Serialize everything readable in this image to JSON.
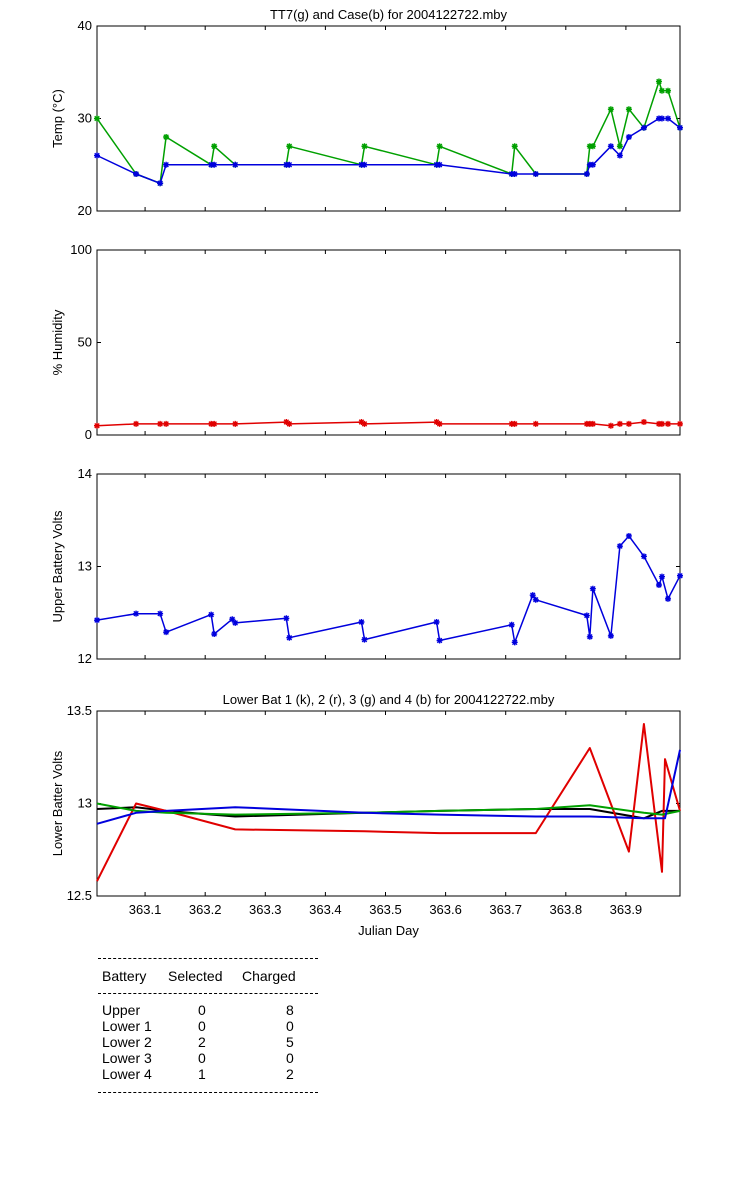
{
  "charts": [
    {
      "title": "TT7(g) and Case(b) for 2004122722.mby",
      "ylabel": "Temp  (°C)",
      "ylim": [
        20,
        40
      ],
      "yticks": [
        "20",
        "30",
        "40"
      ],
      "ytick_values": [
        20,
        30,
        40
      ]
    },
    {
      "title": "",
      "ylabel": "% Humidity",
      "ylim": [
        0,
        100
      ],
      "yticks": [
        "0",
        "50",
        "100"
      ],
      "ytick_values": [
        0,
        50,
        100
      ]
    },
    {
      "title": "",
      "ylabel": "Upper Battery Volts",
      "ylim": [
        12,
        14
      ],
      "yticks": [
        "12",
        "13",
        "14"
      ],
      "ytick_values": [
        12,
        13,
        14
      ]
    },
    {
      "title": "Lower Bat 1 (k), 2 (r), 3 (g) and 4 (b) for 2004122722.mby",
      "ylabel": "Lower Batter Volts",
      "ylim": [
        12.5,
        13.5
      ],
      "yticks": [
        "12.5",
        "13",
        "13.5"
      ],
      "ytick_values": [
        12.5,
        13,
        13.5
      ]
    }
  ],
  "xaxis": {
    "label": "Julian Day",
    "xlim": [
      363.02,
      363.99
    ],
    "ticks": [
      "363.1",
      "363.2",
      "363.3",
      "363.4",
      "363.5",
      "363.6",
      "363.7",
      "363.8",
      "363.9"
    ],
    "tick_values": [
      363.1,
      363.2,
      363.3,
      363.4,
      363.5,
      363.6,
      363.7,
      363.8,
      363.9
    ]
  },
  "chart_data": [
    {
      "type": "line",
      "title": "TT7(g) and Case(b) for 2004122722.mby",
      "ylabel": "Temp  (°C)",
      "ylim": [
        20,
        40
      ],
      "xlim": [
        363.02,
        363.99
      ],
      "series": [
        {
          "color": "#00a000",
          "marker": true,
          "x": [
            363.02,
            363.085,
            363.125,
            363.135,
            363.21,
            363.215,
            363.25,
            363.335,
            363.34,
            363.46,
            363.465,
            363.585,
            363.59,
            363.71,
            363.715,
            363.75,
            363.835,
            363.84,
            363.845,
            363.875,
            363.89,
            363.905,
            363.93,
            363.955,
            363.96,
            363.97,
            363.99
          ],
          "y": [
            30,
            24,
            23,
            28,
            25,
            27,
            25,
            25,
            27,
            25,
            27,
            25,
            27,
            24,
            27,
            24,
            24,
            27,
            27,
            31,
            27,
            31,
            29,
            34,
            33,
            33,
            29
          ]
        },
        {
          "color": "#0000dd",
          "marker": true,
          "x": [
            363.02,
            363.085,
            363.125,
            363.135,
            363.21,
            363.215,
            363.25,
            363.335,
            363.34,
            363.46,
            363.465,
            363.585,
            363.59,
            363.71,
            363.715,
            363.75,
            363.835,
            363.84,
            363.845,
            363.875,
            363.89,
            363.905,
            363.93,
            363.955,
            363.96,
            363.97,
            363.99
          ],
          "y": [
            26,
            24,
            23,
            25,
            25,
            25,
            25,
            25,
            25,
            25,
            25,
            25,
            25,
            24,
            24,
            24,
            24,
            25,
            25,
            27,
            26,
            28,
            29,
            30,
            30,
            30,
            29
          ]
        }
      ]
    },
    {
      "type": "line",
      "ylabel": "% Humidity",
      "ylim": [
        0,
        100
      ],
      "xlim": [
        363.02,
        363.99
      ],
      "series": [
        {
          "color": "#e00000",
          "marker": true,
          "x": [
            363.02,
            363.085,
            363.125,
            363.135,
            363.21,
            363.215,
            363.25,
            363.335,
            363.34,
            363.46,
            363.465,
            363.585,
            363.59,
            363.71,
            363.715,
            363.75,
            363.835,
            363.84,
            363.845,
            363.875,
            363.89,
            363.905,
            363.93,
            363.955,
            363.96,
            363.97,
            363.99
          ],
          "y": [
            5,
            6,
            6,
            6,
            6,
            6,
            6,
            7,
            6,
            7,
            6,
            7,
            6,
            6,
            6,
            6,
            6,
            6,
            6,
            5,
            6,
            6,
            7,
            6,
            6,
            6,
            6
          ]
        }
      ]
    },
    {
      "type": "line",
      "ylabel": "Upper Battery Volts",
      "ylim": [
        12,
        14
      ],
      "xlim": [
        363.02,
        363.99
      ],
      "series": [
        {
          "color": "#0000dd",
          "marker": true,
          "x": [
            363.02,
            363.085,
            363.125,
            363.135,
            363.21,
            363.215,
            363.245,
            363.25,
            363.335,
            363.34,
            363.46,
            363.465,
            363.585,
            363.59,
            363.71,
            363.715,
            363.745,
            363.75,
            363.835,
            363.84,
            363.845,
            363.875,
            363.89,
            363.905,
            363.93,
            363.955,
            363.96,
            363.97,
            363.99
          ],
          "y": [
            12.42,
            12.49,
            12.49,
            12.29,
            12.48,
            12.27,
            12.43,
            12.39,
            12.44,
            12.23,
            12.4,
            12.21,
            12.4,
            12.2,
            12.37,
            12.18,
            12.69,
            12.64,
            12.47,
            12.24,
            12.76,
            12.25,
            13.22,
            13.33,
            13.11,
            12.8,
            12.89,
            12.65,
            12.9
          ]
        }
      ]
    },
    {
      "type": "line",
      "title": "Lower Bat 1 (k), 2 (r), 3 (g) and 4 (b) for 2004122722.mby",
      "ylabel": "Lower Batter Volts",
      "ylim": [
        12.5,
        13.5
      ],
      "xlim": [
        363.02,
        363.99
      ],
      "series": [
        {
          "color": "#000000",
          "marker": false,
          "x": [
            363.02,
            363.085,
            363.135,
            363.25,
            363.465,
            363.59,
            363.75,
            363.84,
            363.93,
            363.96,
            363.99
          ],
          "y": [
            12.97,
            12.98,
            12.96,
            12.93,
            12.95,
            12.96,
            12.97,
            12.97,
            12.92,
            12.96,
            12.96
          ]
        },
        {
          "color": "#e00000",
          "marker": false,
          "x": [
            363.02,
            363.085,
            363.135,
            363.25,
            363.465,
            363.59,
            363.75,
            363.84,
            363.905,
            363.93,
            363.96,
            363.965,
            363.99
          ],
          "y": [
            12.58,
            13.0,
            12.96,
            12.86,
            12.85,
            12.84,
            12.84,
            13.3,
            12.74,
            13.43,
            12.63,
            13.24,
            12.96
          ]
        },
        {
          "color": "#00a000",
          "marker": false,
          "x": [
            363.02,
            363.085,
            363.135,
            363.25,
            363.465,
            363.59,
            363.75,
            363.84,
            363.93,
            363.96,
            363.99
          ],
          "y": [
            13.0,
            12.96,
            12.95,
            12.94,
            12.95,
            12.96,
            12.97,
            12.99,
            12.95,
            12.94,
            12.96
          ]
        },
        {
          "color": "#0000dd",
          "marker": false,
          "x": [
            363.02,
            363.085,
            363.135,
            363.25,
            363.465,
            363.59,
            363.75,
            363.84,
            363.93,
            363.965,
            363.99
          ],
          "y": [
            12.89,
            12.95,
            12.96,
            12.98,
            12.95,
            12.94,
            12.93,
            12.93,
            12.92,
            12.92,
            13.29
          ]
        }
      ]
    }
  ],
  "table": {
    "headers": [
      "Battery",
      "Selected",
      "Charged"
    ],
    "rows": [
      [
        "Upper",
        "0",
        "8"
      ],
      [
        "Lower 1",
        "0",
        "0"
      ],
      [
        "Lower 2",
        "2",
        "5"
      ],
      [
        "Lower 3",
        "0",
        "0"
      ],
      [
        "Lower 4",
        "1",
        "2"
      ]
    ]
  }
}
